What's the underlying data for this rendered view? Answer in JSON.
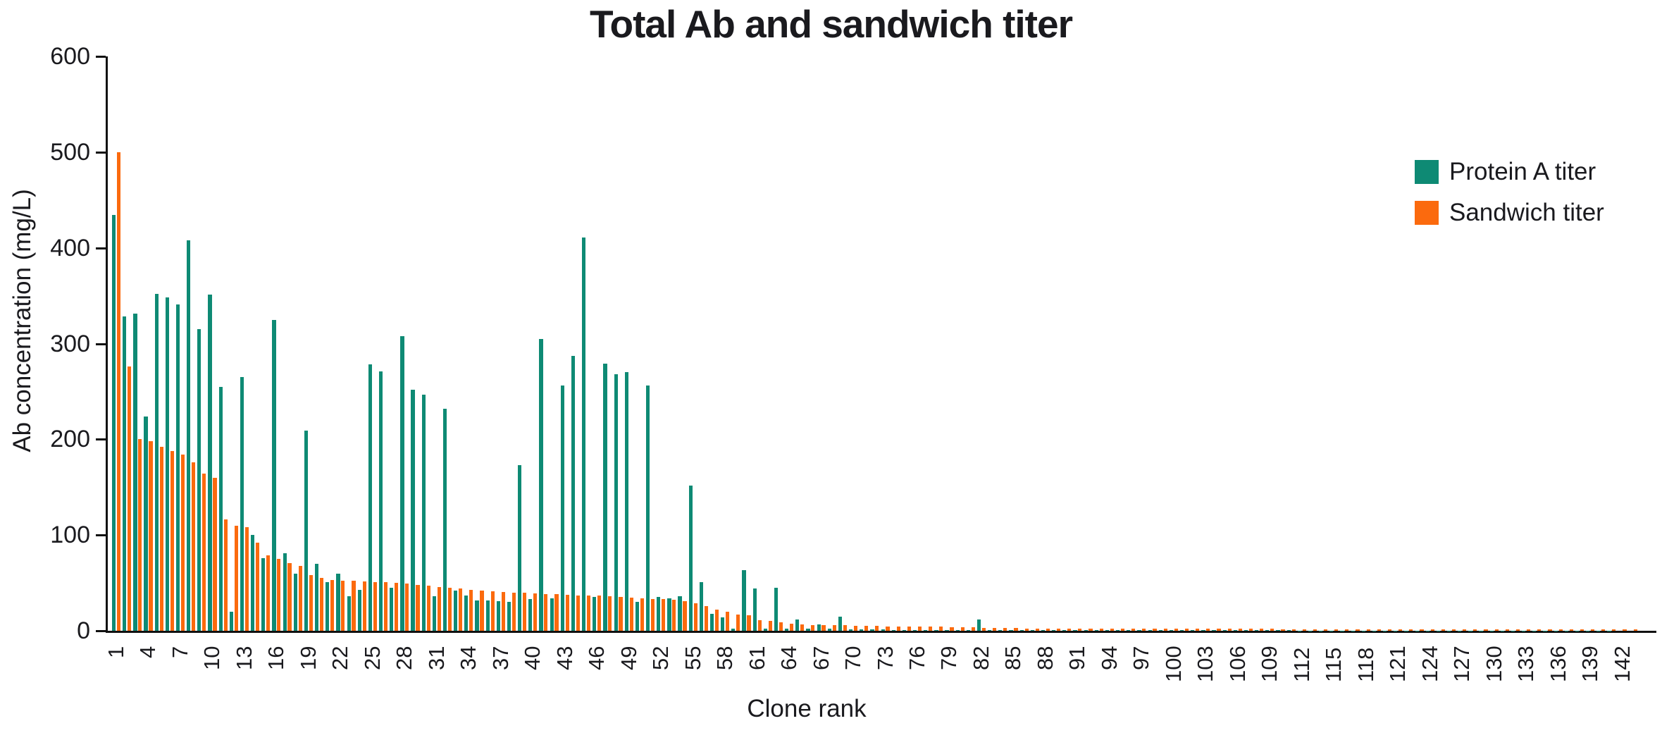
{
  "chart_data": {
    "type": "bar",
    "title": "Total Ab and sandwich titer",
    "xlabel": "Clone rank",
    "ylabel": "Ab concentration (mg/L)",
    "ylim": [
      0,
      600
    ],
    "yticks": [
      0,
      100,
      200,
      300,
      400,
      500,
      600
    ],
    "xtick_labels": [
      1,
      4,
      7,
      10,
      13,
      16,
      19,
      22,
      25,
      28,
      31,
      34,
      37,
      40,
      43,
      46,
      49,
      52,
      55,
      58,
      61,
      64,
      67,
      70,
      73,
      76,
      79,
      82,
      85,
      88,
      91,
      94,
      97,
      100,
      103,
      106,
      109,
      112,
      115,
      118,
      121,
      124,
      127,
      130,
      133,
      136,
      139,
      142
    ],
    "xtick_step": 3,
    "n_categories": 143,
    "grid": false,
    "legend_position": "upper-right",
    "series": [
      {
        "name": "Protein A titer",
        "color": "#0e8a74",
        "values": [
          434,
          328,
          331,
          224,
          352,
          348,
          341,
          408,
          315,
          351,
          255,
          20,
          265,
          100,
          76,
          325,
          81,
          60,
          209,
          70,
          51,
          60,
          36,
          43,
          278,
          271,
          45,
          308,
          252,
          247,
          36,
          232,
          42,
          37,
          32,
          32,
          31,
          30,
          173,
          33,
          305,
          34,
          256,
          287,
          411,
          35,
          279,
          268,
          270,
          30,
          256,
          35,
          34,
          36,
          152,
          51,
          18,
          14,
          2,
          63,
          44,
          2,
          45,
          2,
          12,
          2,
          7,
          2,
          15,
          1.5,
          1.5,
          1.2,
          1.2,
          1,
          1,
          1,
          1,
          1,
          1,
          1,
          1,
          12,
          0.8,
          0.8,
          0.8,
          0.6,
          0.6,
          0.6,
          0.6,
          0.5,
          0.5,
          0.5,
          0.5,
          0.5,
          0.5,
          0.5,
          0.5,
          0.5,
          0.5,
          0.5,
          0.4,
          0.4,
          0.4,
          0.4,
          0.4,
          0.4,
          0.4,
          0.4,
          0.4,
          0.4,
          0.4,
          0.3,
          0.3,
          0.3,
          0.3,
          0.3,
          0.3,
          0.3,
          0.3,
          0.3,
          0.3,
          0.3,
          0.3,
          0.3,
          0.3,
          0.3,
          0.3,
          0.3,
          0.3,
          0.3,
          0.3,
          0.3,
          0.3,
          0.3,
          0.3,
          0.3,
          0.3,
          0.3,
          0.3,
          0.3,
          0.3
        ]
      },
      {
        "name": "Sandwich titer",
        "color": "#fb6a0e",
        "values": [
          500,
          276,
          200,
          198,
          192,
          188,
          184,
          176,
          164,
          160,
          116,
          110,
          108,
          92,
          79,
          75,
          71,
          68,
          58,
          55,
          53,
          52,
          52,
          51.5,
          51,
          50.5,
          50,
          49,
          48,
          47,
          46,
          45,
          44,
          43,
          42,
          41,
          40.5,
          40,
          39.5,
          39,
          38.5,
          38,
          37.5,
          37,
          37,
          36.5,
          36,
          35.5,
          34.5,
          34,
          33.5,
          33,
          32.5,
          31,
          29,
          26,
          22,
          20,
          17,
          16,
          11,
          10,
          9,
          7.5,
          6.5,
          6.1,
          6.1,
          5.7,
          5.7,
          5.2,
          5,
          4.9,
          4.7,
          4.6,
          4.4,
          4.3,
          4.2,
          4.1,
          4,
          3.9,
          3.7,
          2.7,
          2.7,
          2.6,
          2.6,
          2.5,
          2.5,
          2.4,
          2.4,
          2.3,
          2.3,
          2.3,
          2.2,
          2.2,
          2.2,
          2.1,
          2.1,
          2.1,
          2.1,
          2,
          2,
          2,
          2,
          2,
          1.9,
          1.9,
          1.9,
          1.9,
          1.9,
          1.8,
          1.8,
          1.8,
          1.8,
          1.8,
          1.8,
          1.7,
          1.7,
          1.7,
          1.7,
          1.7,
          1.7,
          1.6,
          1.6,
          1.6,
          1.6,
          1.6,
          1.6,
          1.5,
          1.5,
          1.5,
          1.5,
          1.5,
          1.5,
          1.5,
          1.4,
          1.4,
          1.4,
          1.4,
          1.4,
          1.3,
          1.3,
          1.3,
          1.3
        ]
      }
    ]
  },
  "legend": {
    "items": [
      {
        "label": "Protein A titer",
        "color": "#0e8a74"
      },
      {
        "label": "Sandwich titer",
        "color": "#fb6a0e"
      }
    ]
  },
  "colors": {
    "protein_a": "#0e8a74",
    "sandwich": "#fb6a0e",
    "axis": "#111111",
    "text": "#1a1a1e",
    "background": "#ffffff"
  }
}
